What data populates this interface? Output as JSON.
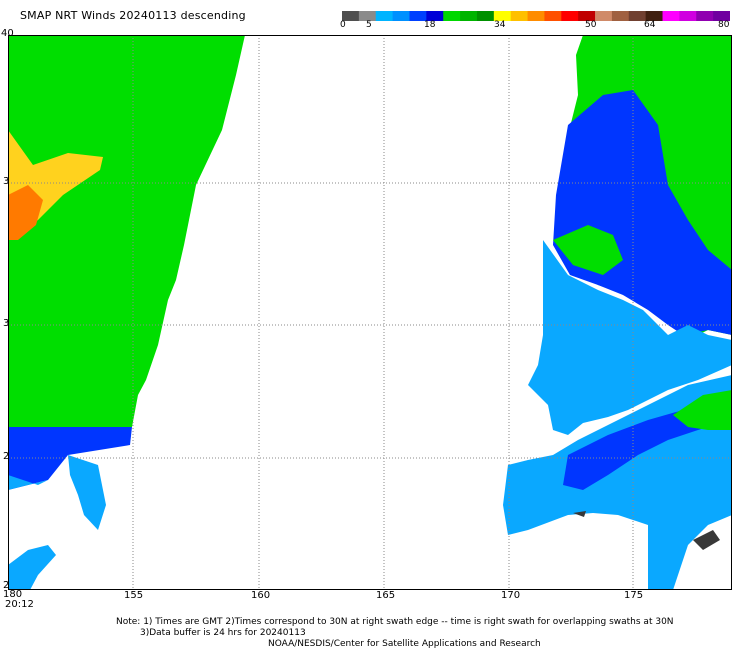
{
  "title": "SMAP NRT Winds  20240113 descending",
  "legend": {
    "ticks": [
      "0",
      "5",
      "18",
      "34",
      "50",
      "64",
      "80"
    ],
    "colors": [
      "#4f4f4f",
      "#8a8a8a",
      "#00b4ff",
      "#0090ff",
      "#0040ff",
      "#0000d8",
      "#00d800",
      "#00b400",
      "#009000",
      "#ffff00",
      "#ffc000",
      "#ff8c00",
      "#ff5000",
      "#ff0000",
      "#c00000",
      "#d08a68",
      "#a06040",
      "#704030",
      "#402010",
      "#ff00ff",
      "#d000e0",
      "#9000b0",
      "#7000a0"
    ]
  },
  "map": {
    "lon_labels": [
      "155",
      "160",
      "165",
      "170",
      "175"
    ],
    "lat_labels": [
      "40",
      "3",
      "3",
      "2",
      "2"
    ],
    "corner_label": "180",
    "time_label": "20:12",
    "colors": {
      "green": "#00de00",
      "blue": "#0033ff",
      "lightblue": "#0aa8ff",
      "yellow": "#ffd21e",
      "orange": "#ff7a00",
      "dark": "#383838"
    }
  },
  "notes": {
    "line1": "Note: 1) Times are GMT  2)Times correspond to 30N at right swath edge -- time is right swath for overlapping swaths at 30N",
    "line2": "3)Data buffer is 24 hrs for 20240113",
    "line3": "NOAA/NESDIS/Center for Satellite Applications and Research"
  }
}
